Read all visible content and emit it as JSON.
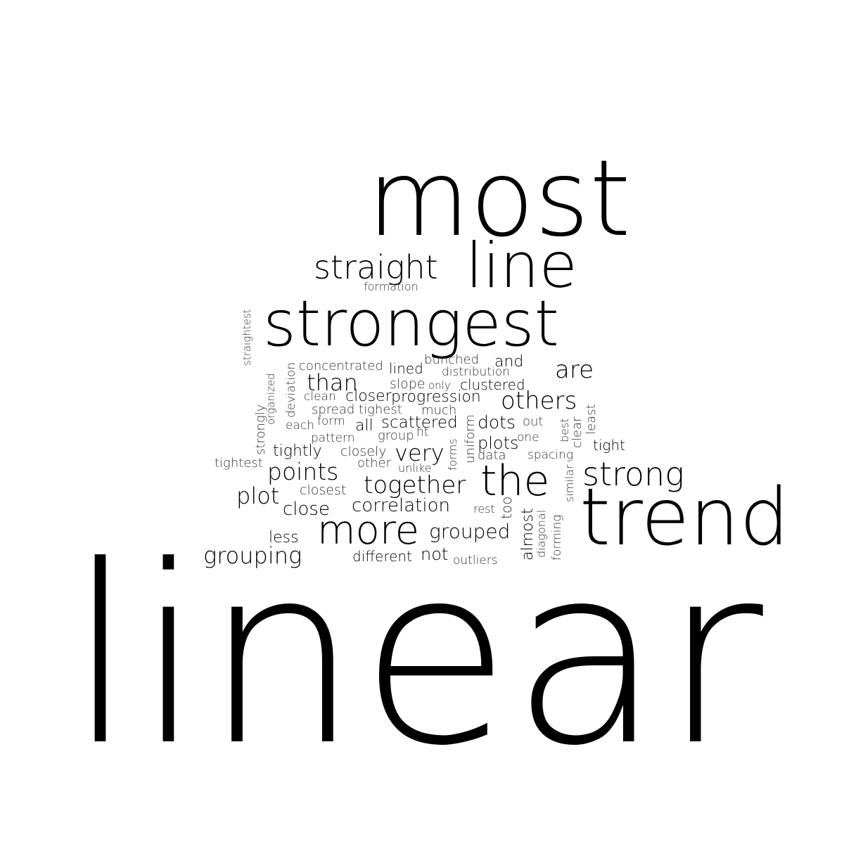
{
  "word_cloud": {
    "words": [
      {
        "text": "linear",
        "vertical": false
      },
      {
        "text": "most",
        "vertical": false
      },
      {
        "text": "line",
        "vertical": false
      },
      {
        "text": "straight",
        "vertical": false
      },
      {
        "text": "formation",
        "vertical": false
      },
      {
        "text": "strongest",
        "vertical": false
      },
      {
        "text": "straightest",
        "vertical": true
      },
      {
        "text": "concentrated",
        "vertical": false
      },
      {
        "text": "lined",
        "vertical": false
      },
      {
        "text": "bunched",
        "vertical": false
      },
      {
        "text": "and",
        "vertical": false
      },
      {
        "text": "distribution",
        "vertical": false
      },
      {
        "text": "are",
        "vertical": false
      },
      {
        "text": "organized",
        "vertical": true
      },
      {
        "text": "deviation",
        "vertical": true
      },
      {
        "text": "than",
        "vertical": false
      },
      {
        "text": "slope",
        "vertical": false
      },
      {
        "text": "only",
        "vertical": false
      },
      {
        "text": "clustered",
        "vertical": false
      },
      {
        "text": "strongly",
        "vertical": true
      },
      {
        "text": "clean",
        "vertical": false
      },
      {
        "text": "closer",
        "vertical": false
      },
      {
        "text": "progression",
        "vertical": false
      },
      {
        "text": "others",
        "vertical": false
      },
      {
        "text": "spread",
        "vertical": false
      },
      {
        "text": "tighest",
        "vertical": false
      },
      {
        "text": "much",
        "vertical": false
      },
      {
        "text": "each",
        "vertical": false
      },
      {
        "text": "form",
        "vertical": false
      },
      {
        "text": "all",
        "vertical": false
      },
      {
        "text": "scattered",
        "vertical": false
      },
      {
        "text": "dots",
        "vertical": false
      },
      {
        "text": "out",
        "vertical": false
      },
      {
        "text": "best",
        "vertical": true
      },
      {
        "text": "clear",
        "vertical": true
      },
      {
        "text": "least",
        "vertical": true
      },
      {
        "text": "uniform",
        "vertical": true
      },
      {
        "text": "pattern",
        "vertical": false
      },
      {
        "text": "group",
        "vertical": false
      },
      {
        "text": "fit",
        "vertical": false
      },
      {
        "text": "one",
        "vertical": false
      },
      {
        "text": "tight",
        "vertical": false
      },
      {
        "text": "tightly",
        "vertical": false
      },
      {
        "text": "closely",
        "vertical": false
      },
      {
        "text": "very",
        "vertical": false
      },
      {
        "text": "forms",
        "vertical": true
      },
      {
        "text": "plots",
        "vertical": false
      },
      {
        "text": "tightest",
        "vertical": false
      },
      {
        "text": "other",
        "vertical": false
      },
      {
        "text": "data",
        "vertical": false
      },
      {
        "text": "spacing",
        "vertical": false
      },
      {
        "text": "points",
        "vertical": false
      },
      {
        "text": "unlike",
        "vertical": false
      },
      {
        "text": "similar",
        "vertical": true
      },
      {
        "text": "the",
        "vertical": false
      },
      {
        "text": "strong",
        "vertical": false
      },
      {
        "text": "together",
        "vertical": false
      },
      {
        "text": "plot",
        "vertical": false
      },
      {
        "text": "closest",
        "vertical": false
      },
      {
        "text": "close",
        "vertical": false
      },
      {
        "text": "correlation",
        "vertical": false
      },
      {
        "text": "rest",
        "vertical": false
      },
      {
        "text": "too",
        "vertical": true
      },
      {
        "text": "almost",
        "vertical": true
      },
      {
        "text": "diagonal",
        "vertical": true
      },
      {
        "text": "forming",
        "vertical": true
      },
      {
        "text": "trend",
        "vertical": false
      },
      {
        "text": "more",
        "vertical": false
      },
      {
        "text": "grouped",
        "vertical": false
      },
      {
        "text": "less",
        "vertical": false
      },
      {
        "text": "grouping",
        "vertical": false
      },
      {
        "text": "different",
        "vertical": false
      },
      {
        "text": "not",
        "vertical": false
      },
      {
        "text": "outliers",
        "vertical": false
      }
    ]
  }
}
